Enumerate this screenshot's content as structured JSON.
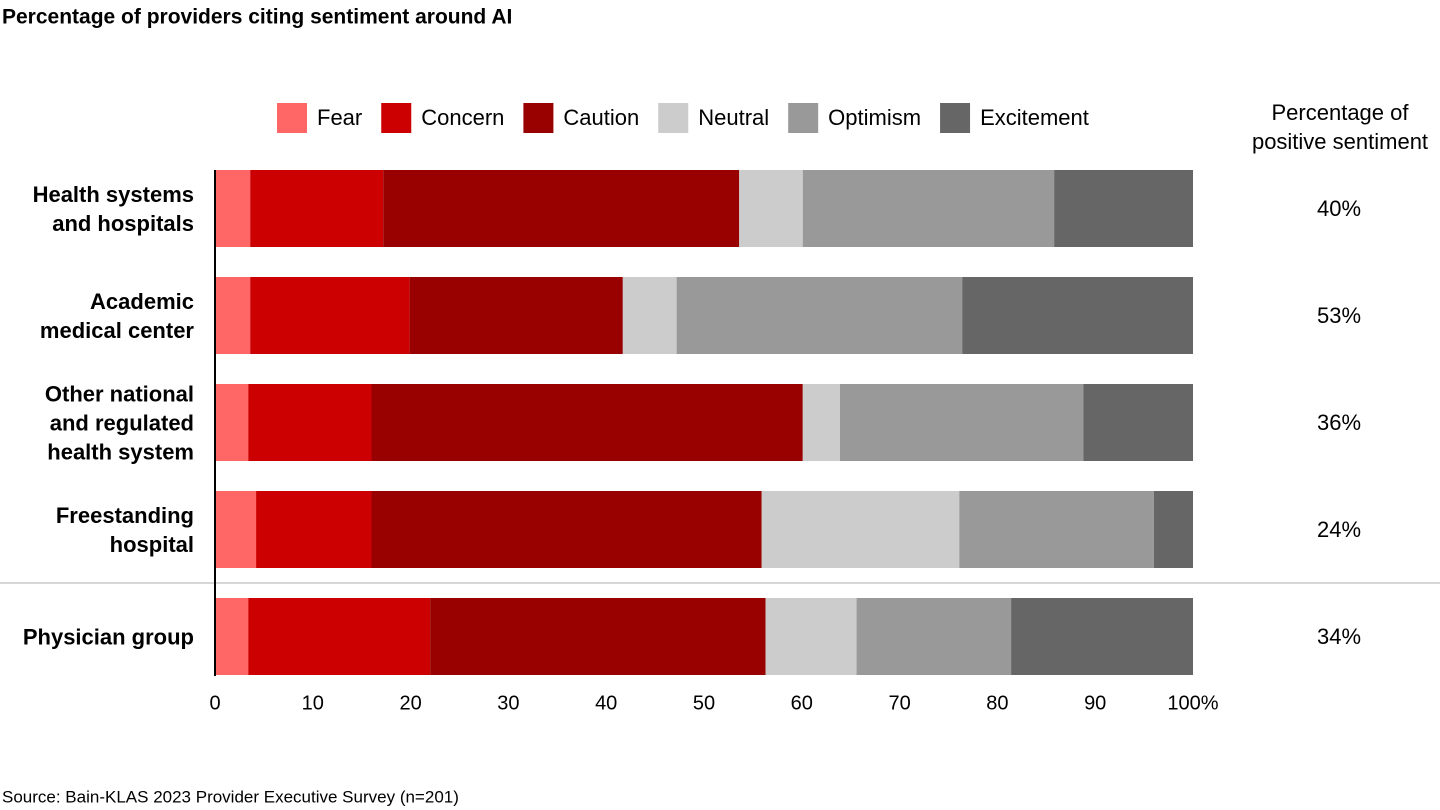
{
  "chart_data": {
    "type": "bar",
    "orientation": "horizontal",
    "stacked": true,
    "title": "Percentage of providers citing sentiment around AI",
    "categories": [
      "Health systems\nand hospitals",
      "Academic\nmedical center",
      "Other national\nand regulated\nhealth system",
      "Freestanding\nhospital",
      "Physician group"
    ],
    "series": [
      {
        "name": "Fear",
        "color": "#ff6666",
        "values": [
          3.6,
          3.6,
          3.4,
          4.2,
          3.4
        ]
      },
      {
        "name": "Concern",
        "color": "#cc0000",
        "values": [
          13.6,
          16.3,
          12.6,
          11.8,
          18.6
        ]
      },
      {
        "name": "Caution",
        "color": "#990000",
        "values": [
          36.4,
          21.8,
          44.1,
          39.9,
          34.3
        ]
      },
      {
        "name": "Neutral",
        "color": "#cccccc",
        "values": [
          6.5,
          5.5,
          3.8,
          20.2,
          9.3
        ]
      },
      {
        "name": "Optimism",
        "color": "#999999",
        "values": [
          25.7,
          29.2,
          24.9,
          19.9,
          15.8
        ]
      },
      {
        "name": "Excitement",
        "color": "#666666",
        "values": [
          14.2,
          23.6,
          11.2,
          4.0,
          18.6
        ]
      }
    ],
    "xlim": [
      0,
      100
    ],
    "xticks": [
      0,
      10,
      20,
      30,
      40,
      50,
      60,
      70,
      80,
      90,
      {
        "value": 100,
        "label": "100%"
      }
    ],
    "positive_sentiment": {
      "title": "Percentage of\npositive sentiment",
      "values": [
        40,
        53,
        36,
        24,
        34
      ],
      "value_labels": [
        "40%",
        "53%",
        "36%",
        "24%",
        "34%"
      ]
    },
    "source": "Source: Bain-KLAS 2023 Provider Executive Survey (n=201)"
  }
}
